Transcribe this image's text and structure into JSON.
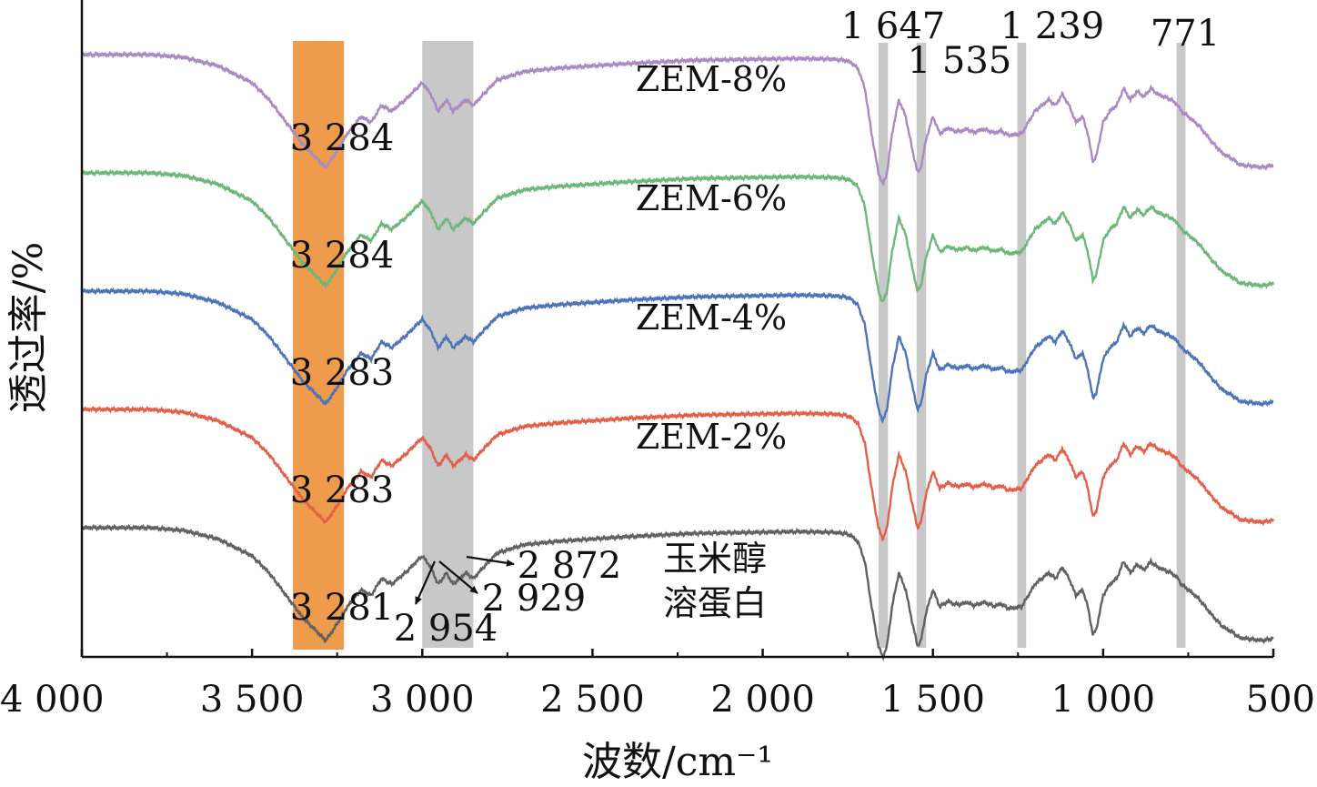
{
  "chart_data": {
    "type": "line",
    "xlabel": "波数/cm⁻¹",
    "ylabel": "透过率/%",
    "xlim": [
      4000,
      500
    ],
    "x_reversed": true,
    "x_ticks": [
      4000,
      3500,
      3000,
      2500,
      2000,
      1500,
      1000,
      500
    ],
    "x_tick_labels": [
      "4 000",
      "3 500",
      "3 000",
      "2 500",
      "2 000",
      "1 500",
      "1 000",
      "500"
    ],
    "y_ticks_visible": false,
    "grid": false,
    "legend": "none",
    "highlight_bands": [
      {
        "from": 3380,
        "to": 3230,
        "color": "#ee9b4b"
      },
      {
        "from": 3000,
        "to": 2850,
        "color": "#c8c8c8"
      },
      {
        "from": 1660,
        "to": 1632,
        "color": "#c8c8c8"
      },
      {
        "from": 1548,
        "to": 1520,
        "color": "#c8c8c8"
      },
      {
        "from": 1252,
        "to": 1226,
        "color": "#c8c8c8"
      },
      {
        "from": 784,
        "to": 758,
        "color": "#c8c8c8"
      }
    ],
    "band_labels": [
      {
        "x": 1647,
        "text": "1 647"
      },
      {
        "x": 1535,
        "text": "1 535"
      },
      {
        "x": 1239,
        "text": "1 239"
      },
      {
        "x": 771,
        "text": "771"
      }
    ],
    "series": [
      {
        "name": "ZEM-8%",
        "color": "#a98bc4",
        "offset": 4,
        "peak_label": "3 284"
      },
      {
        "name": "ZEM-6%",
        "color": "#6cb779",
        "offset": 3,
        "peak_label": "3 284"
      },
      {
        "name": "ZEM-4%",
        "color": "#4e73b8",
        "offset": 2,
        "peak_label": "3 283"
      },
      {
        "name": "ZEM-2%",
        "color": "#e2604a",
        "offset": 1,
        "peak_label": "3 283"
      },
      {
        "name_lines": [
          "玉米醇",
          "溶蛋白"
        ],
        "color": "#616161",
        "offset": 0,
        "peak_label": "3 281",
        "extra_labels": [
          "2 954",
          "2 929",
          "2 872"
        ]
      }
    ],
    "shape": {
      "x": [
        4000,
        3900,
        3800,
        3700,
        3600,
        3500,
        3450,
        3400,
        3350,
        3300,
        3284,
        3260,
        3220,
        3180,
        3150,
        3120,
        3090,
        3050,
        3000,
        2975,
        2954,
        2940,
        2929,
        2910,
        2890,
        2872,
        2850,
        2820,
        2780,
        2700,
        2600,
        2500,
        2400,
        2300,
        2200,
        2100,
        2000,
        1900,
        1800,
        1760,
        1740,
        1720,
        1700,
        1680,
        1660,
        1647,
        1635,
        1620,
        1600,
        1580,
        1560,
        1545,
        1535,
        1520,
        1500,
        1480,
        1455,
        1440,
        1420,
        1400,
        1380,
        1350,
        1320,
        1300,
        1280,
        1260,
        1239,
        1220,
        1200,
        1180,
        1160,
        1140,
        1120,
        1100,
        1080,
        1060,
        1045,
        1030,
        1020,
        1000,
        980,
        960,
        940,
        920,
        900,
        880,
        860,
        840,
        820,
        800,
        780,
        771,
        760,
        740,
        720,
        700,
        680,
        650,
        620,
        600,
        560,
        530,
        500
      ],
      "t": [
        90,
        90,
        90,
        89.5,
        88,
        85,
        82,
        78,
        74,
        71,
        70,
        72,
        76,
        79,
        78,
        81,
        80,
        82,
        85,
        83,
        80,
        81,
        82,
        80,
        81,
        82,
        81,
        83,
        85.5,
        87,
        87.6,
        88,
        88.4,
        88.7,
        89,
        89.1,
        89.2,
        89.3,
        89.2,
        89,
        88.6,
        87.5,
        84,
        76,
        69,
        67,
        69,
        76,
        82,
        79,
        73,
        69,
        70,
        75,
        79,
        76,
        77,
        76.5,
        76.4,
        76.8,
        76.2,
        76.8,
        76.1,
        76.5,
        75.7,
        75.8,
        76,
        78,
        80,
        81,
        82,
        81,
        83,
        81,
        78,
        79,
        76,
        71,
        72,
        78,
        80,
        81,
        84,
        82,
        83.5,
        82.5,
        84,
        83,
        82.5,
        82,
        81,
        80,
        79.5,
        78.5,
        77.5,
        76,
        74.5,
        72.5,
        71.5,
        70.5,
        70.2,
        70,
        70.4
      ]
    }
  }
}
